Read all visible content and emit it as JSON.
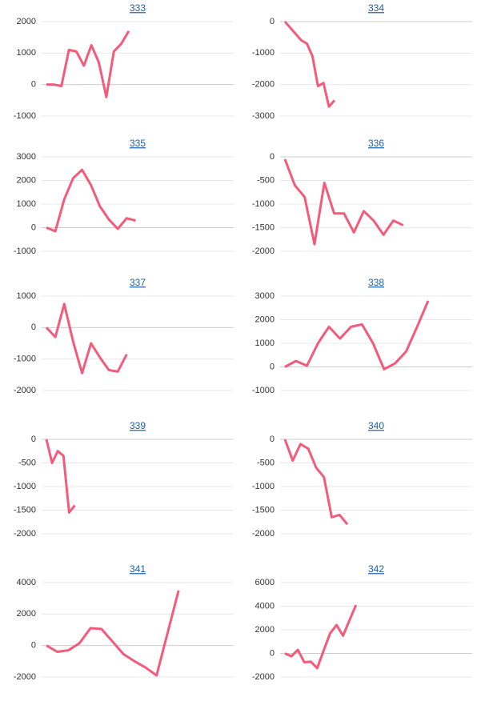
{
  "chart_data": [
    {
      "type": "line",
      "title": "333",
      "categories": [
        null,
        null,
        null,
        null,
        null,
        null,
        null,
        null,
        null,
        null,
        null,
        null,
        null,
        null,
        null,
        null,
        null,
        null,
        null,
        null,
        null,
        null,
        null,
        null,
        null,
        null
      ],
      "series": [
        {
          "color": "#f45b7a",
          "values": [
            0,
            0,
            -50,
            1100,
            1050,
            600,
            1250,
            700,
            -400,
            1050,
            1300,
            1700,
            null,
            null,
            null,
            null,
            null,
            null,
            null,
            null,
            null,
            null,
            null,
            null,
            null,
            null
          ]
        }
      ],
      "ylim": [
        -1000,
        2000
      ],
      "yticks": [
        -1000,
        0,
        1000,
        2000
      ],
      "grid": true
    },
    {
      "type": "line",
      "title": "334",
      "categories": [
        null,
        null,
        null,
        null,
        null,
        null,
        null,
        null,
        null,
        null,
        null,
        null,
        null,
        null,
        null,
        null,
        null,
        null,
        null,
        null,
        null,
        null,
        null,
        null,
        null,
        null,
        null,
        null,
        null,
        null,
        null,
        null,
        null,
        null,
        null
      ],
      "series": [
        {
          "color": "#f45b7a",
          "values": [
            0,
            -200,
            -400,
            -600,
            -700,
            -1100,
            -2050,
            -1950,
            -2700,
            -2500,
            null,
            null,
            null,
            null,
            null,
            null,
            null,
            null,
            null,
            null,
            null,
            null,
            null,
            null,
            null,
            null,
            null,
            null,
            null,
            null,
            null,
            null,
            null,
            null,
            null
          ]
        }
      ],
      "ylim": [
        -3000,
        0
      ],
      "yticks": [
        -3000,
        -2000,
        -1000,
        0
      ],
      "grid": true
    },
    {
      "type": "line",
      "title": "335",
      "categories": [
        null,
        null,
        null,
        null,
        null,
        null,
        null,
        null,
        null,
        null,
        null,
        null,
        null,
        null,
        null,
        null,
        null,
        null,
        null,
        null,
        null,
        null
      ],
      "series": [
        {
          "color": "#f45b7a",
          "values": [
            0,
            -150,
            1200,
            2100,
            2450,
            1800,
            900,
            350,
            -50,
            400,
            300,
            null,
            null,
            null,
            null,
            null,
            null,
            null,
            null,
            null,
            null,
            null
          ]
        }
      ],
      "ylim": [
        -1000,
        3000
      ],
      "yticks": [
        -1000,
        0,
        1000,
        2000,
        3000
      ],
      "grid": true
    },
    {
      "type": "line",
      "title": "336",
      "categories": [
        null,
        null,
        null,
        null,
        null,
        null,
        null,
        null,
        null,
        null,
        null,
        null,
        null,
        null,
        null,
        null,
        null,
        null,
        null,
        null
      ],
      "series": [
        {
          "color": "#f45b7a",
          "values": [
            -50,
            -600,
            -850,
            -1850,
            -550,
            -1200,
            -1200,
            -1600,
            -1150,
            -1350,
            -1650,
            -1350,
            -1450,
            null,
            null,
            null,
            null,
            null,
            null,
            null
          ]
        }
      ],
      "ylim": [
        -2000,
        0
      ],
      "yticks": [
        -2000,
        -1500,
        -1000,
        -500,
        0
      ],
      "grid": true
    },
    {
      "type": "line",
      "title": "337",
      "categories": [
        null,
        null,
        null,
        null,
        null,
        null,
        null,
        null,
        null,
        null,
        null,
        null,
        null,
        null,
        null,
        null,
        null,
        null,
        null,
        null,
        null,
        null
      ],
      "series": [
        {
          "color": "#f45b7a",
          "values": [
            0,
            -300,
            750,
            -450,
            -1450,
            -500,
            -950,
            -1350,
            -1400,
            -850,
            null,
            null,
            null,
            null,
            null,
            null,
            null,
            null,
            null,
            null,
            null,
            null
          ]
        }
      ],
      "ylim": [
        -2000,
        1000
      ],
      "yticks": [
        -2000,
        -1000,
        0,
        1000
      ],
      "grid": true
    },
    {
      "type": "line",
      "title": "338",
      "categories": [
        null,
        null,
        null,
        null,
        null,
        null,
        null,
        null,
        null,
        null,
        null,
        null,
        null,
        null,
        null,
        null,
        null,
        null
      ],
      "series": [
        {
          "color": "#f45b7a",
          "values": [
            0,
            250,
            50,
            1000,
            1700,
            1200,
            1700,
            1800,
            1000,
            -100,
            150,
            650,
            1700,
            2800,
            null,
            null,
            null,
            null
          ]
        }
      ],
      "ylim": [
        -1000,
        3000
      ],
      "yticks": [
        -1000,
        0,
        1000,
        2000,
        3000
      ],
      "grid": true
    },
    {
      "type": "line",
      "title": "339",
      "categories": [
        null,
        null,
        null,
        null,
        null,
        null,
        null,
        null,
        null,
        null,
        null,
        null,
        null,
        null,
        null,
        null,
        null,
        null,
        null,
        null,
        null,
        null,
        null,
        null,
        null,
        null,
        null,
        null,
        null,
        null,
        null,
        null,
        null,
        null
      ],
      "series": [
        {
          "color": "#f45b7a",
          "values": [
            0,
            -500,
            -250,
            -350,
            -1550,
            -1400,
            null,
            null,
            null,
            null,
            null,
            null,
            null,
            null,
            null,
            null,
            null,
            null,
            null,
            null,
            null,
            null,
            null,
            null,
            null,
            null,
            null,
            null,
            null,
            null,
            null,
            null,
            null,
            null
          ]
        }
      ],
      "ylim": [
        -2000,
        0
      ],
      "yticks": [
        -2000,
        -1500,
        -1000,
        -500,
        0
      ],
      "grid": true
    },
    {
      "type": "line",
      "title": "340",
      "categories": [
        null,
        null,
        null,
        null,
        null,
        null,
        null,
        null,
        null,
        null,
        null,
        null,
        null,
        null,
        null,
        null,
        null,
        null,
        null,
        null,
        null,
        null,
        null,
        null,
        null
      ],
      "series": [
        {
          "color": "#f45b7a",
          "values": [
            0,
            -450,
            -100,
            -200,
            -600,
            -800,
            -1650,
            -1600,
            -1800,
            null,
            null,
            null,
            null,
            null,
            null,
            null,
            null,
            null,
            null,
            null,
            null,
            null,
            null,
            null,
            null
          ]
        }
      ],
      "ylim": [
        -2000,
        0
      ],
      "yticks": [
        -2000,
        -1500,
        -1000,
        -500,
        0
      ],
      "grid": true
    },
    {
      "type": "line",
      "title": "341",
      "categories": [
        null,
        null,
        null,
        null,
        null,
        null,
        null,
        null,
        null,
        null,
        null,
        null,
        null,
        null,
        null,
        null,
        null,
        null
      ],
      "series": [
        {
          "color": "#f45b7a",
          "values": [
            0,
            -400,
            -300,
            150,
            1100,
            1050,
            250,
            -550,
            -1000,
            -1400,
            -1900,
            800,
            3500,
            null,
            null,
            null,
            null,
            null
          ]
        }
      ],
      "ylim": [
        -2000,
        4000
      ],
      "yticks": [
        -2000,
        0,
        2000,
        4000
      ],
      "grid": true
    },
    {
      "type": "line",
      "title": "342",
      "categories": [
        null,
        null,
        null,
        null,
        null,
        null,
        null,
        null,
        null,
        null,
        null,
        null,
        null,
        null,
        null,
        null,
        null,
        null,
        null,
        null,
        null,
        null,
        null,
        null,
        null,
        null,
        null,
        null,
        null,
        null
      ],
      "series": [
        {
          "color": "#f45b7a",
          "values": [
            0,
            -250,
            300,
            -750,
            -700,
            -1250,
            250,
            1700,
            2400,
            1500,
            2800,
            4100,
            null,
            null,
            null,
            null,
            null,
            null,
            null,
            null,
            null,
            null,
            null,
            null,
            null,
            null,
            null,
            null,
            null,
            null
          ]
        }
      ],
      "ylim": [
        -2000,
        6000
      ],
      "yticks": [
        -2000,
        0,
        2000,
        4000,
        6000
      ],
      "grid": true
    }
  ]
}
